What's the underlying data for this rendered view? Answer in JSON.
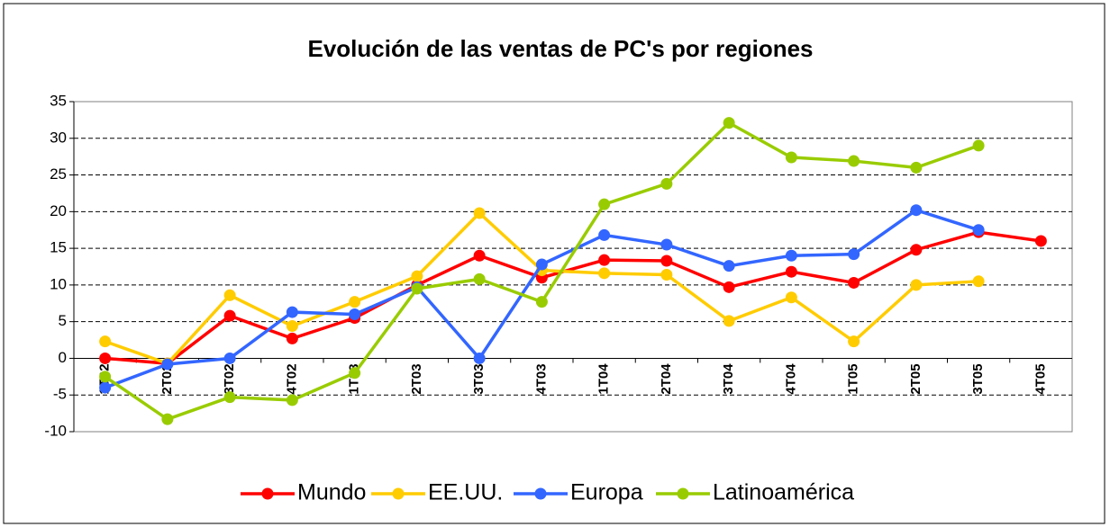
{
  "chart_data": {
    "type": "line",
    "title": "Evolución de las ventas de PC's por regiones",
    "categories": [
      "1T02",
      "2T02",
      "3T02",
      "4T02",
      "1T03",
      "2T03",
      "3T03",
      "4T03",
      "1T04",
      "2T04",
      "3T04",
      "4T04",
      "1T05",
      "2T05",
      "3T05",
      "4T05"
    ],
    "series": [
      {
        "name": "Mundo",
        "color": "#ff0000",
        "values": [
          0,
          -0.7,
          5.8,
          2.7,
          5.5,
          10,
          14,
          11,
          13.4,
          13.3,
          9.7,
          11.8,
          10.3,
          14.8,
          17.2,
          16
        ]
      },
      {
        "name": "EE.UU.",
        "color": "#ffcc00",
        "values": [
          2.3,
          -0.7,
          8.6,
          4.4,
          7.7,
          11.2,
          19.8,
          12,
          11.6,
          11.4,
          5.1,
          8.3,
          2.3,
          10,
          10.5,
          null
        ]
      },
      {
        "name": "Europa",
        "color": "#3366ff",
        "values": [
          -4,
          -0.8,
          0,
          6.3,
          6,
          9.7,
          0,
          12.8,
          16.8,
          15.5,
          12.6,
          14,
          14.2,
          20.2,
          17.5,
          null
        ]
      },
      {
        "name": "Latinoamérica",
        "color": "#99cc00",
        "values": [
          -2.5,
          -8.3,
          -5.3,
          -5.7,
          -2,
          9.5,
          10.8,
          7.7,
          21,
          23.8,
          32.1,
          27.4,
          26.9,
          26,
          29,
          null
        ]
      }
    ],
    "ylim": [
      -10,
      35
    ],
    "yticks": [
      -10,
      -5,
      0,
      5,
      10,
      15,
      20,
      25,
      30,
      35
    ],
    "grid": true,
    "legend": "bottom"
  }
}
